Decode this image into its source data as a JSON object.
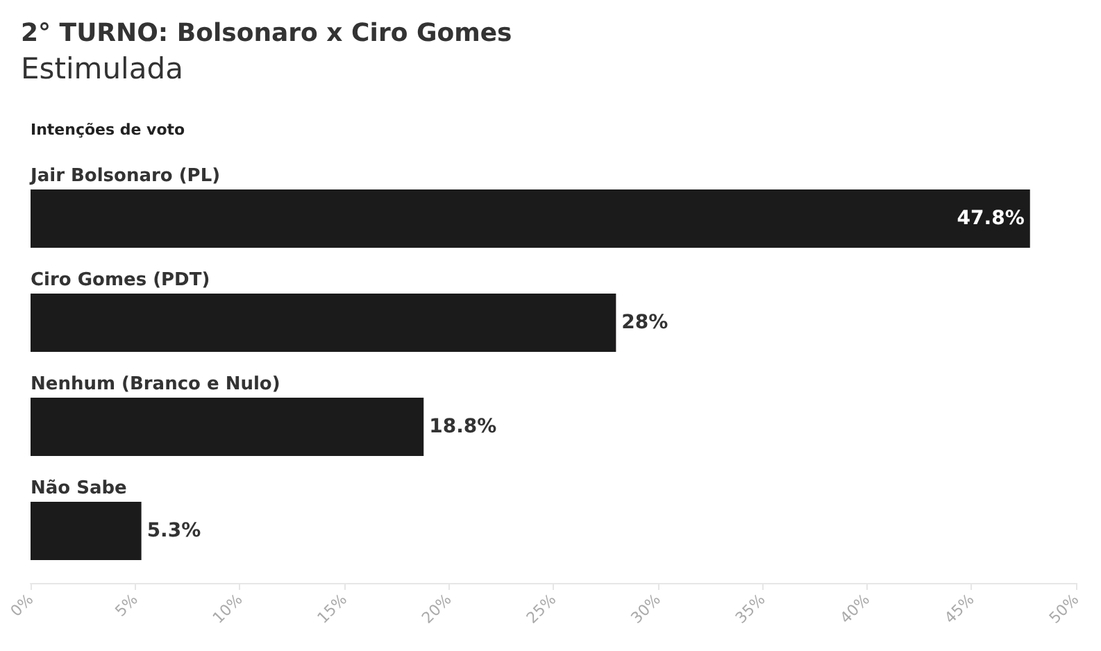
{
  "chart_data": {
    "type": "bar",
    "orientation": "horizontal",
    "title": "2° TURNO: Bolsonaro x Ciro Gomes",
    "subtitle": "Estimulada",
    "annotations": [
      "Intenções de voto"
    ],
    "categories": [
      "Jair Bolsonaro (PL)",
      "Ciro Gomes (PDT)",
      "Nenhum (Branco e Nulo)",
      "Não Sabe"
    ],
    "values": [
      47.8,
      28,
      18.8,
      5.3
    ],
    "value_labels": [
      "47.8%",
      "28%",
      "18.8%",
      "5.3%"
    ],
    "color": "#1c1b1b",
    "xlim": [
      0,
      50
    ],
    "xticks": [
      {
        "value": 0,
        "label": "0%"
      },
      {
        "value": 5,
        "label": "5%"
      },
      {
        "value": 10,
        "label": "10%"
      },
      {
        "value": 15,
        "label": "15%"
      },
      {
        "value": 20,
        "label": "20%"
      },
      {
        "value": 25,
        "label": "25%"
      },
      {
        "value": 30,
        "label": "30%"
      },
      {
        "value": 35,
        "label": "35%"
      },
      {
        "value": 40,
        "label": "40%"
      },
      {
        "value": 45,
        "label": "45%"
      },
      {
        "value": 50,
        "label": "50%"
      }
    ],
    "grid": false
  }
}
